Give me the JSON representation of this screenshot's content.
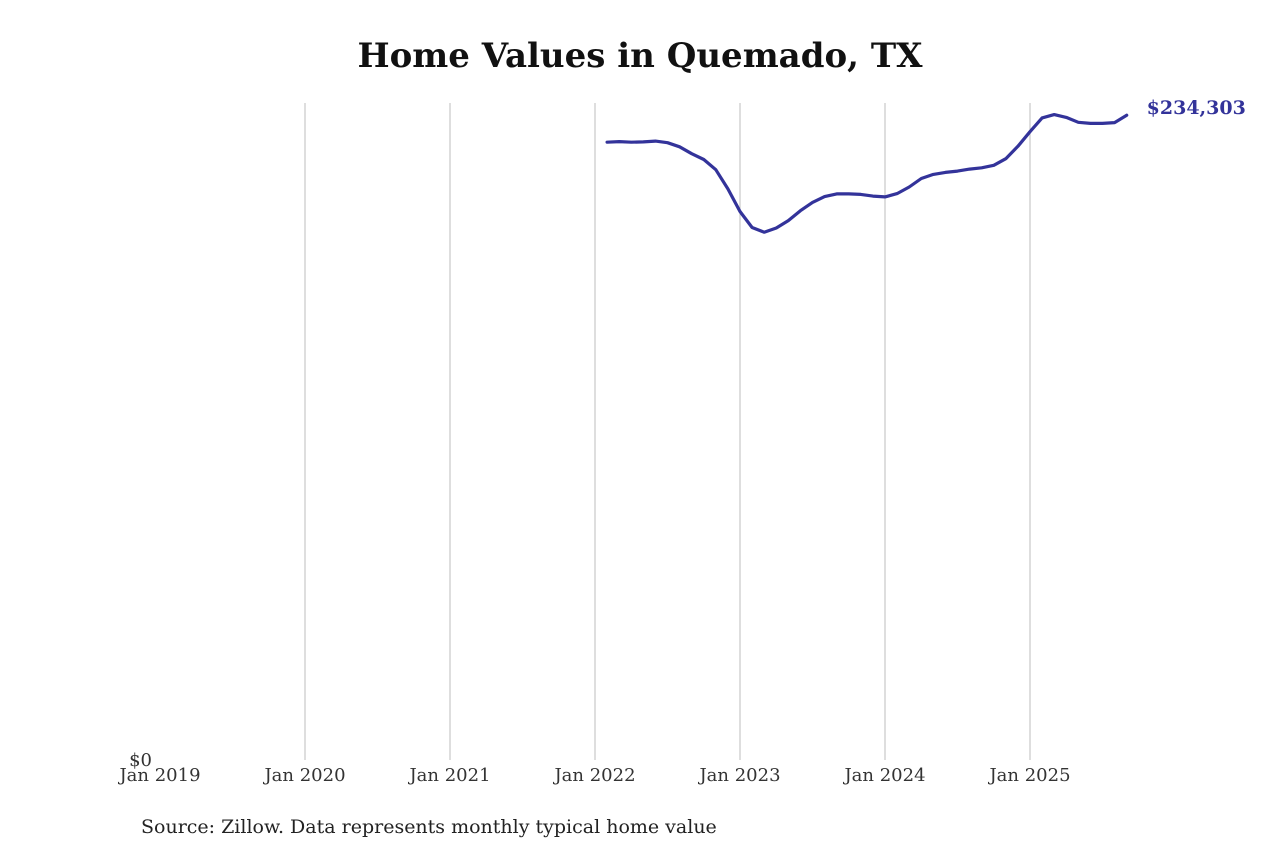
{
  "title": "Home Values in Quemado, TX",
  "source_note": "Source: Zillow. Data represents monthly typical home value",
  "colors": {
    "line": "#33339a",
    "gridline": "#bdbdbd",
    "text": "#333333"
  },
  "chart_data": {
    "type": "line",
    "title": "Home Values in Quemado, TX",
    "xlabel": "",
    "ylabel": "",
    "x_range": [
      "2019-01",
      "2025-10"
    ],
    "ylim": [
      0,
      240000
    ],
    "grid": {
      "vertical": true,
      "horizontal": false
    },
    "x_ticks": [
      "Jan 2019",
      "Jan 2020",
      "Jan 2021",
      "Jan 2022",
      "Jan 2023",
      "Jan 2024",
      "Jan 2025"
    ],
    "y_ticks": [
      "$0"
    ],
    "end_label": "$234,303",
    "series": [
      {
        "x": [
          "2022-02",
          "2022-03",
          "2022-04",
          "2022-05",
          "2022-06",
          "2022-07",
          "2022-08",
          "2022-09",
          "2022-10",
          "2022-11",
          "2022-12",
          "2023-01",
          "2023-02",
          "2023-03",
          "2023-04",
          "2023-05",
          "2023-06",
          "2023-07",
          "2023-08",
          "2023-09",
          "2023-10",
          "2023-11",
          "2023-12",
          "2024-01",
          "2024-02",
          "2024-03",
          "2024-04",
          "2024-05",
          "2024-06",
          "2024-07",
          "2024-08",
          "2024-09",
          "2024-10",
          "2024-11",
          "2024-12",
          "2025-01",
          "2025-02",
          "2025-03",
          "2025-04",
          "2025-05",
          "2025-06",
          "2025-07",
          "2025-08",
          "2025-09"
        ],
        "values": [
          224500,
          224700,
          224500,
          224600,
          224900,
          224300,
          222800,
          220300,
          218200,
          214500,
          207500,
          199300,
          193500,
          191800,
          193300,
          196000,
          199600,
          202600,
          204700,
          205700,
          205700,
          205500,
          204900,
          204600,
          205800,
          208200,
          211300,
          212800,
          213500,
          214000,
          214700,
          215200,
          216100,
          218500,
          223000,
          228300,
          233300,
          234500,
          233500,
          231700,
          231300,
          231300,
          231600,
          234303
        ]
      }
    ]
  }
}
